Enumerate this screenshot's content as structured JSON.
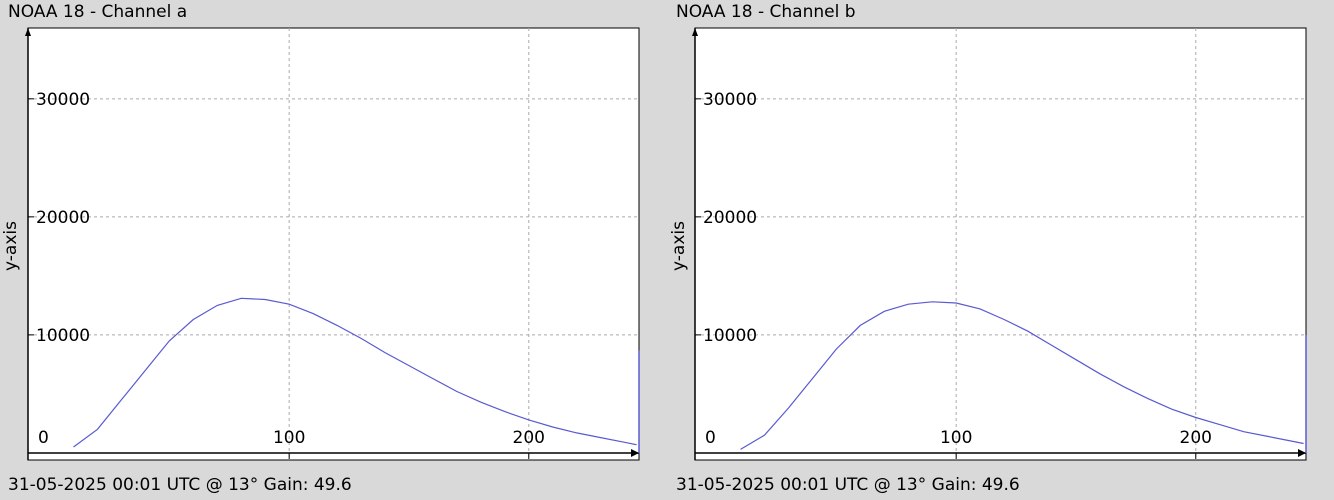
{
  "chart_data": [
    {
      "type": "line",
      "title": "NOAA 18 - Channel a",
      "ylabel": "y-axis",
      "xlabel": "",
      "footer": "31-05-2025 00:01 UTC @ 13° Gain: 49.6",
      "xlim": [
        -9,
        246
      ],
      "ylim": [
        -600,
        36000
      ],
      "x_ticks": [
        0,
        100,
        200
      ],
      "y_ticks": [
        0,
        10000,
        20000,
        30000
      ],
      "grid": true,
      "series_color": "#5a5ad2",
      "series": [
        {
          "x": [
            10,
            20,
            30,
            40,
            50,
            60,
            70,
            80,
            90,
            100,
            110,
            120,
            130,
            140,
            150,
            160,
            170,
            180,
            190,
            200,
            210,
            220,
            230,
            240,
            245
          ],
          "values": [
            500,
            2000,
            4500,
            7000,
            9500,
            11300,
            12500,
            13100,
            13000,
            12600,
            11800,
            10800,
            9700,
            8500,
            7400,
            6300,
            5200,
            4300,
            3500,
            2800,
            2200,
            1700,
            1300,
            900,
            700
          ]
        }
      ],
      "end_spike": {
        "x": 246,
        "y": 8700
      }
    },
    {
      "type": "line",
      "title": "NOAA 18 - Channel b",
      "ylabel": "y-axis",
      "xlabel": "",
      "footer": "31-05-2025 00:01 UTC @ 13° Gain: 49.6",
      "xlim": [
        -9,
        246
      ],
      "ylim": [
        -600,
        36000
      ],
      "x_ticks": [
        0,
        100,
        200
      ],
      "y_ticks": [
        0,
        10000,
        20000,
        30000
      ],
      "grid": true,
      "series_color": "#5a5ad2",
      "series": [
        {
          "x": [
            10,
            20,
            30,
            40,
            50,
            60,
            70,
            80,
            90,
            100,
            110,
            120,
            130,
            140,
            150,
            160,
            170,
            180,
            190,
            200,
            210,
            220,
            230,
            240,
            245
          ],
          "values": [
            300,
            1500,
            3800,
            6300,
            8800,
            10800,
            12000,
            12600,
            12800,
            12700,
            12200,
            11300,
            10300,
            9100,
            7900,
            6700,
            5600,
            4600,
            3700,
            3000,
            2400,
            1800,
            1400,
            1000,
            800
          ]
        }
      ],
      "end_spike": {
        "x": 246,
        "y": 10000
      }
    }
  ]
}
